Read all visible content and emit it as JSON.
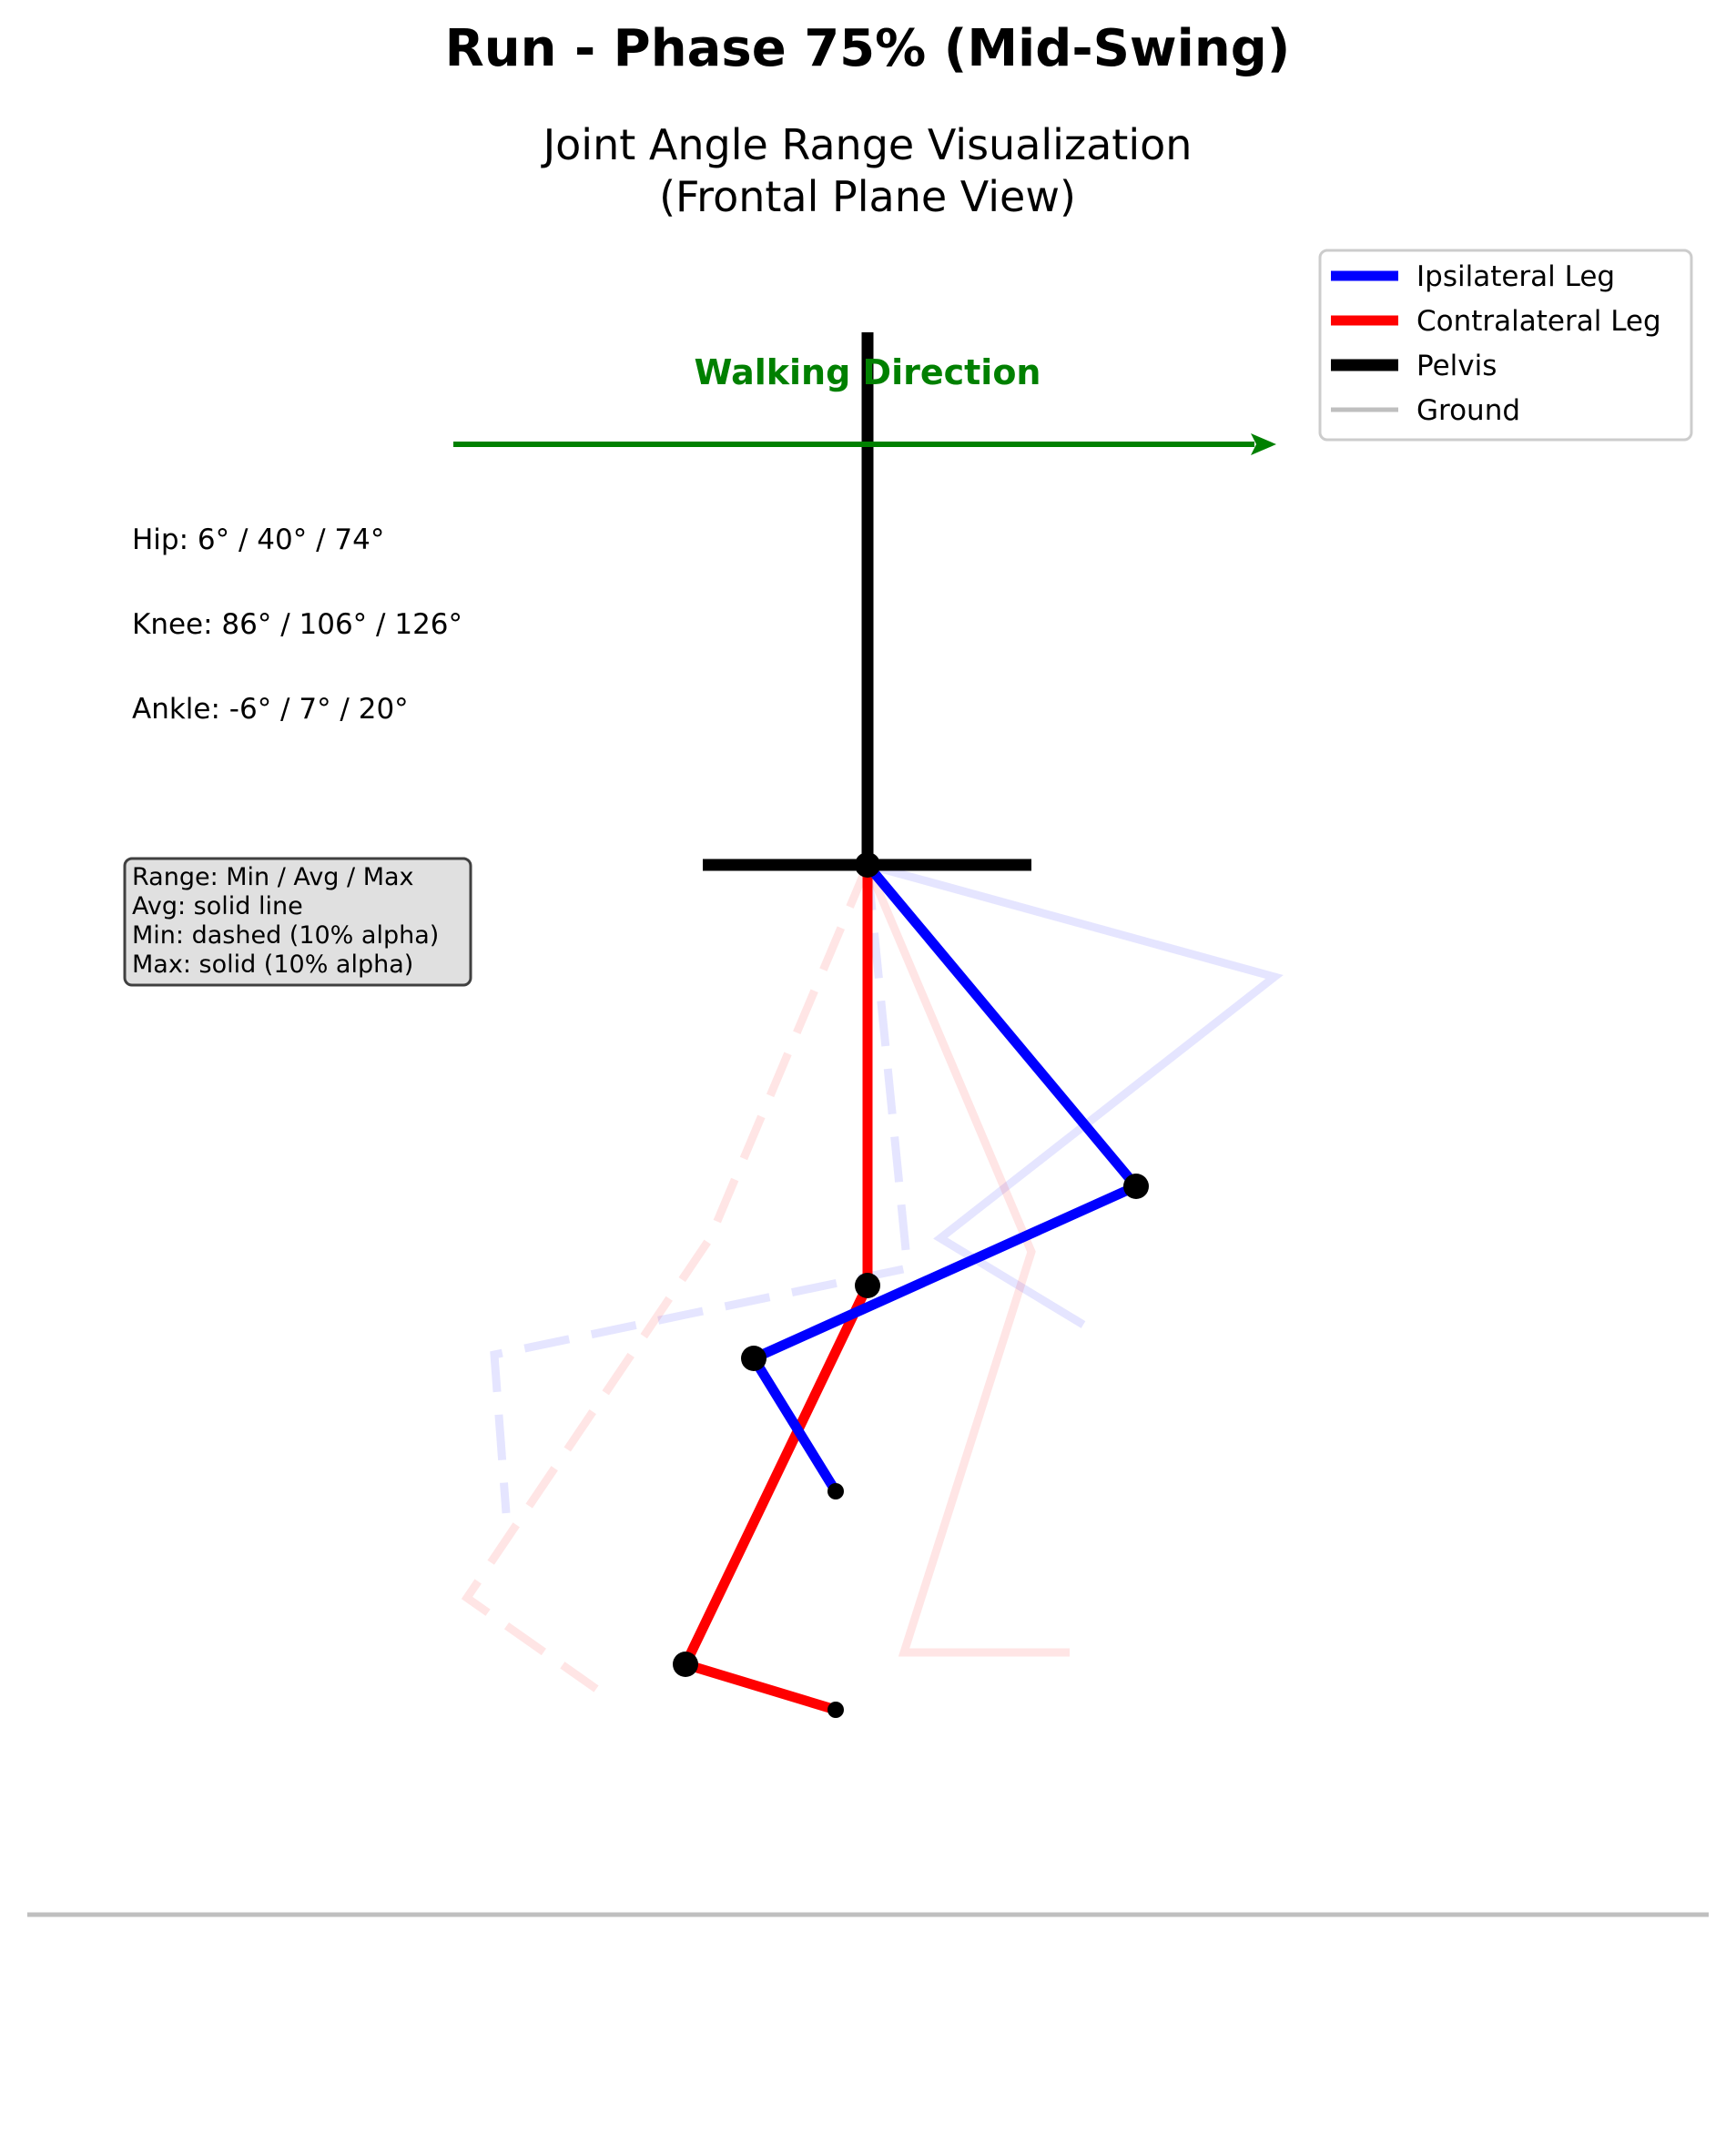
{
  "title": "Run - Phase 75% (Mid-Swing)",
  "subtitle_line1": "Joint Angle Range Visualization",
  "subtitle_line2": "(Frontal Plane View)",
  "direction_label": "Walking Direction",
  "angles": {
    "hip": "Hip: 6° / 40° / 74°",
    "knee": "Knee: 86° / 106° / 126°",
    "ankle": "Ankle: -6° / 7° / 20°"
  },
  "note": {
    "line1": "Range: Min / Avg / Max",
    "line2": "Avg: solid line",
    "line3": "Min: dashed (10% alpha)",
    "line4": "Max: solid (10% alpha)"
  },
  "legend": {
    "ipsilateral": "Ipsilateral Leg",
    "contralateral": "Contralateral Leg",
    "pelvis": "Pelvis",
    "ground": "Ground"
  },
  "colors": {
    "ipsilateral": "#0000ff",
    "contralateral": "#ff0000",
    "pelvis": "#000000",
    "ground": "#bfbfbf",
    "direction": "#008000"
  }
}
